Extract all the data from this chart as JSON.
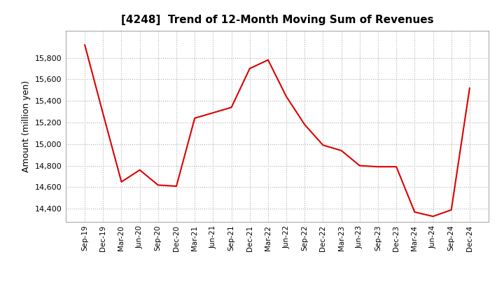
{
  "title": "[4248]  Trend of 12-Month Moving Sum of Revenues",
  "ylabel": "Amount (million yen)",
  "background_color": "#ffffff",
  "plot_bg_color": "#ffffff",
  "grid_color": "#b0b0b0",
  "line_color": "#dd0000",
  "x_labels": [
    "Sep-19",
    "Dec-19",
    "Mar-20",
    "Jun-20",
    "Sep-20",
    "Dec-20",
    "Mar-21",
    "Jun-21",
    "Sep-21",
    "Dec-21",
    "Mar-22",
    "Jun-22",
    "Sep-22",
    "Dec-22",
    "Mar-23",
    "Jun-23",
    "Sep-23",
    "Dec-23",
    "Mar-24",
    "Jun-24",
    "Sep-24",
    "Dec-24"
  ],
  "y_values": [
    15920,
    15280,
    14650,
    14760,
    14620,
    14610,
    15240,
    15290,
    15340,
    15700,
    15780,
    15440,
    15180,
    14990,
    14940,
    14800,
    14790,
    14790,
    14370,
    14330,
    14390,
    15520
  ],
  "ylim": [
    14280,
    16050
  ],
  "yticks": [
    14400,
    14600,
    14800,
    15000,
    15200,
    15400,
    15600,
    15800
  ]
}
